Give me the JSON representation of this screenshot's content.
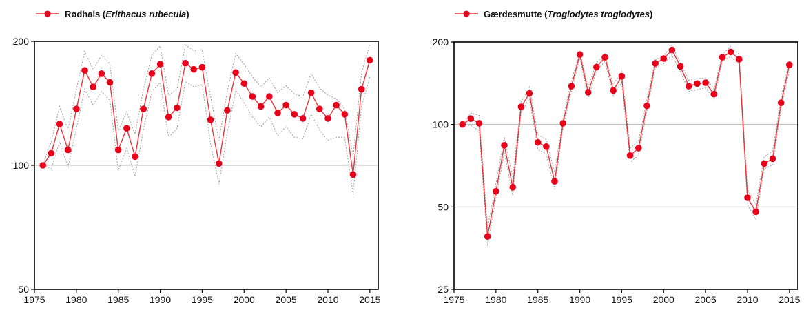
{
  "chart_data": [
    {
      "type": "line",
      "legend": {
        "name": "Rødhals",
        "latin": "Erithacus rubecula",
        "open": " (",
        "close": ")",
        "placement": "top-left"
      },
      "x": [
        1976,
        1977,
        1978,
        1979,
        1980,
        1981,
        1982,
        1983,
        1984,
        1985,
        1986,
        1987,
        1988,
        1989,
        1990,
        1991,
        1992,
        1993,
        1994,
        1995,
        1996,
        1997,
        1998,
        1999,
        2000,
        2001,
        2002,
        2003,
        2004,
        2005,
        2006,
        2007,
        2008,
        2009,
        2010,
        2011,
        2012,
        2013,
        2014,
        2015
      ],
      "y": [
        100,
        107,
        126,
        109,
        137,
        170,
        155,
        167,
        159,
        109,
        123,
        105,
        137,
        167,
        176,
        131,
        138,
        177,
        171,
        173,
        129,
        101,
        136,
        168,
        158,
        147,
        139,
        147,
        134,
        140,
        133,
        130,
        150,
        137,
        130,
        140,
        133,
        95,
        153,
        180
      ],
      "y_upper": [
        100,
        114,
        139,
        122,
        153,
        189,
        171,
        185,
        176,
        121,
        135,
        119,
        153,
        185,
        195,
        148,
        153,
        196,
        190,
        191,
        147,
        115,
        151,
        187,
        176,
        164,
        155,
        163,
        150,
        156,
        149,
        147,
        167,
        154,
        148,
        145,
        137,
        105,
        168,
        196
      ],
      "y_lower": [
        100,
        98,
        114,
        99,
        123,
        153,
        140,
        151,
        144,
        97,
        110,
        94,
        122,
        151,
        159,
        117,
        123,
        160,
        155,
        157,
        113,
        90,
        120,
        152,
        142,
        131,
        124,
        131,
        118,
        124,
        117,
        116,
        133,
        122,
        115,
        117,
        117,
        85,
        139,
        164
      ],
      "ylim": [
        50,
        200
      ],
      "yscale": "log",
      "yticks": [
        50,
        100,
        200
      ],
      "xticks": [
        1975,
        1980,
        1985,
        1990,
        1995,
        2000,
        2005,
        2010,
        2015
      ],
      "reference_gridlines": [
        100
      ],
      "colors": {
        "line": "#e8343a",
        "marker": "#e8001a",
        "ci": "#a6a6a6",
        "grid": "#b7b7b7"
      }
    },
    {
      "type": "line",
      "legend": {
        "name": "Gærdesmutte",
        "latin": "Troglodytes troglodytes",
        "open": " (",
        "close": ")",
        "placement": "top-left"
      },
      "x": [
        1976,
        1977,
        1978,
        1979,
        1980,
        1981,
        1982,
        1983,
        1984,
        1985,
        1986,
        1987,
        1988,
        1989,
        1990,
        1991,
        1992,
        1993,
        1994,
        1995,
        1996,
        1997,
        1998,
        1999,
        2000,
        2001,
        2002,
        2003,
        2004,
        2005,
        2006,
        2007,
        2008,
        2009,
        2010,
        2011,
        2012,
        2013,
        2014,
        2015
      ],
      "y": [
        100,
        105,
        101,
        39,
        57,
        84,
        59,
        116,
        130,
        86,
        83,
        62,
        101,
        138,
        180,
        131,
        162,
        176,
        133,
        150,
        77,
        82,
        117,
        167,
        174,
        187,
        163,
        138,
        141,
        142,
        129,
        176,
        184,
        173,
        54,
        48,
        72,
        75,
        120,
        165
      ],
      "y_upper": [
        100,
        110,
        108,
        42,
        61,
        90,
        64,
        121,
        137,
        92,
        88,
        67,
        105,
        145,
        184,
        137,
        168,
        181,
        140,
        156,
        82,
        87,
        123,
        172,
        178,
        194,
        168,
        145,
        147,
        148,
        135,
        180,
        193,
        180,
        58,
        51,
        76,
        80,
        126,
        172
      ],
      "y_lower": [
        100,
        99,
        95,
        36,
        54,
        79,
        55,
        111,
        124,
        81,
        78,
        58,
        97,
        132,
        175,
        125,
        157,
        170,
        127,
        143,
        73,
        77,
        112,
        161,
        167,
        179,
        156,
        132,
        134,
        136,
        124,
        170,
        177,
        166,
        51,
        45,
        69,
        71,
        114,
        158
      ],
      "ylim": [
        25,
        200
      ],
      "yscale": "log",
      "yticks": [
        25,
        50,
        100,
        200
      ],
      "xticks": [
        1975,
        1980,
        1985,
        1990,
        1995,
        2000,
        2005,
        2010,
        2015
      ],
      "reference_gridlines": [
        50,
        100
      ],
      "colors": {
        "line": "#e8343a",
        "marker": "#e8001a",
        "ci": "#a6a6a6",
        "grid": "#b7b7b7"
      }
    }
  ]
}
